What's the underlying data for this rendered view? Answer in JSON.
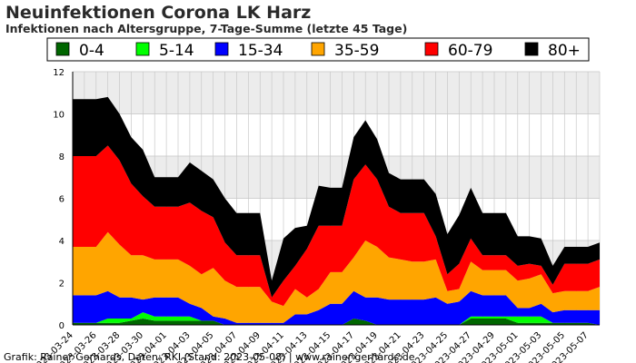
{
  "chart_data": {
    "type": "area",
    "stacked": true,
    "title": "Neuinfektionen Corona LK Harz",
    "subtitle": "Infektionen nach Altersgruppe, 7-Tage-Summe (letzte 45 Tage)",
    "footer": "Grafik: Rainer Gerhards, Daten: RKI (Stand: 2023-05-08) | www.rainer-gerhards.de",
    "ylim": [
      0,
      12
    ],
    "yticks": [
      0,
      2,
      4,
      6,
      8,
      10,
      12
    ],
    "x": [
      "2023-03-24",
      "2023-03-25",
      "2023-03-26",
      "2023-03-27",
      "2023-03-28",
      "2023-03-29",
      "2023-03-30",
      "2023-03-31",
      "2023-04-01",
      "2023-04-02",
      "2023-04-03",
      "2023-04-04",
      "2023-04-05",
      "2023-04-06",
      "2023-04-07",
      "2023-04-08",
      "2023-04-09",
      "2023-04-10",
      "2023-04-11",
      "2023-04-12",
      "2023-04-13",
      "2023-04-14",
      "2023-04-15",
      "2023-04-16",
      "2023-04-17",
      "2023-04-18",
      "2023-04-19",
      "2023-04-20",
      "2023-04-21",
      "2023-04-22",
      "2023-04-23",
      "2023-04-24",
      "2023-04-25",
      "2023-04-26",
      "2023-04-27",
      "2023-04-28",
      "2023-04-29",
      "2023-04-30",
      "2023-05-01",
      "2023-05-02",
      "2023-05-03",
      "2023-05-04",
      "2023-05-05",
      "2023-05-06",
      "2023-05-07",
      "2023-05-08"
    ],
    "xtick_labels": [
      "2023-03-24",
      "2023-03-26",
      "2023-03-28",
      "2023-03-30",
      "2023-04-01",
      "2023-04-03",
      "2023-04-05",
      "2023-04-07",
      "2023-04-09",
      "2023-04-11",
      "2023-04-13",
      "2023-04-15",
      "2023-04-17",
      "2023-04-19",
      "2023-04-21",
      "2023-04-23",
      "2023-04-25",
      "2023-04-27",
      "2023-04-29",
      "2023-05-01",
      "2023-05-03",
      "2023-05-05",
      "2023-05-07"
    ],
    "legend_placement": "top",
    "series": [
      {
        "name": "0-4",
        "color": "#006600",
        "values": [
          0.1,
          0.1,
          0.1,
          0.1,
          0.1,
          0.2,
          0.3,
          0.2,
          0.2,
          0.2,
          0.2,
          0.2,
          0.2,
          0,
          0,
          0,
          0,
          0,
          0,
          0,
          0,
          0,
          0,
          0,
          0.3,
          0.2,
          0,
          0,
          0,
          0,
          0,
          0,
          0,
          0,
          0.3,
          0.3,
          0.3,
          0.3,
          0.1,
          0.1,
          0.1,
          0.1,
          0.1,
          0.1,
          0.1,
          0
        ]
      },
      {
        "name": "5-14",
        "color": "#00ff00",
        "values": [
          0,
          0,
          0,
          0.2,
          0.2,
          0.1,
          0.3,
          0.2,
          0.2,
          0.2,
          0.2,
          0,
          0,
          0,
          0,
          0,
          0,
          0,
          0,
          0,
          0,
          0,
          0,
          0,
          0,
          0,
          0,
          0,
          0,
          0,
          0,
          0,
          0,
          0,
          0.1,
          0.1,
          0.1,
          0.1,
          0.3,
          0.3,
          0.3,
          0,
          0,
          0,
          0,
          0
        ]
      },
      {
        "name": "15-34",
        "color": "#0000ff",
        "values": [
          1.3,
          1.3,
          1.3,
          1.3,
          1.0,
          1.0,
          0.6,
          0.9,
          0.9,
          0.9,
          0.6,
          0.6,
          0.2,
          0.3,
          0.1,
          0.1,
          0.1,
          0.1,
          0.1,
          0.5,
          0.5,
          0.7,
          1.0,
          1.0,
          1.3,
          1.1,
          1.3,
          1.2,
          1.2,
          1.2,
          1.2,
          1.3,
          1.0,
          1.1,
          1.2,
          1.0,
          1.0,
          1.0,
          0.4,
          0.4,
          0.6,
          0.5,
          0.6,
          0.6,
          0.6,
          0.7
        ]
      },
      {
        "name": "35-59",
        "color": "#ffa500",
        "values": [
          2.3,
          2.3,
          2.3,
          2.8,
          2.5,
          2.0,
          2.1,
          1.8,
          1.8,
          1.8,
          1.8,
          1.6,
          2.3,
          1.8,
          1.7,
          1.7,
          1.7,
          1.0,
          0.8,
          1.2,
          0.8,
          1.0,
          1.5,
          1.5,
          1.6,
          2.7,
          2.4,
          2.0,
          1.9,
          1.8,
          1.8,
          1.8,
          0.6,
          0.6,
          1.4,
          1.2,
          1.2,
          1.2,
          1.3,
          1.4,
          1.4,
          0.9,
          0.9,
          0.9,
          0.9,
          1.1
        ]
      },
      {
        "name": "60-79",
        "color": "#ff0000",
        "values": [
          4.3,
          4.3,
          4.3,
          4.1,
          4.0,
          3.4,
          2.8,
          2.5,
          2.5,
          2.5,
          3.0,
          3.0,
          2.4,
          1.8,
          1.5,
          1.5,
          1.5,
          0.2,
          1.2,
          1.1,
          2.3,
          3.0,
          2.2,
          2.2,
          3.7,
          3.6,
          3.2,
          2.4,
          2.2,
          2.3,
          2.3,
          1.1,
          0.8,
          1.2,
          1.1,
          0.7,
          0.7,
          0.7,
          0.7,
          0.7,
          0.4,
          0.4,
          1.3,
          1.3,
          1.3,
          1.3
        ]
      },
      {
        "name": "80+",
        "color": "#000000",
        "values": [
          2.7,
          2.7,
          2.7,
          2.3,
          2.2,
          2.2,
          2.2,
          1.4,
          1.4,
          1.4,
          1.9,
          1.9,
          1.8,
          2.1,
          2.0,
          2.0,
          2.0,
          0.8,
          2.0,
          1.8,
          1.1,
          1.9,
          1.8,
          1.8,
          2.0,
          2.1,
          1.9,
          1.6,
          1.6,
          1.6,
          1.6,
          2.0,
          1.9,
          2.3,
          2.4,
          2.0,
          2.0,
          2.0,
          1.4,
          1.3,
          1.3,
          0.9,
          0.8,
          0.8,
          0.8,
          0.8
        ]
      }
    ]
  }
}
